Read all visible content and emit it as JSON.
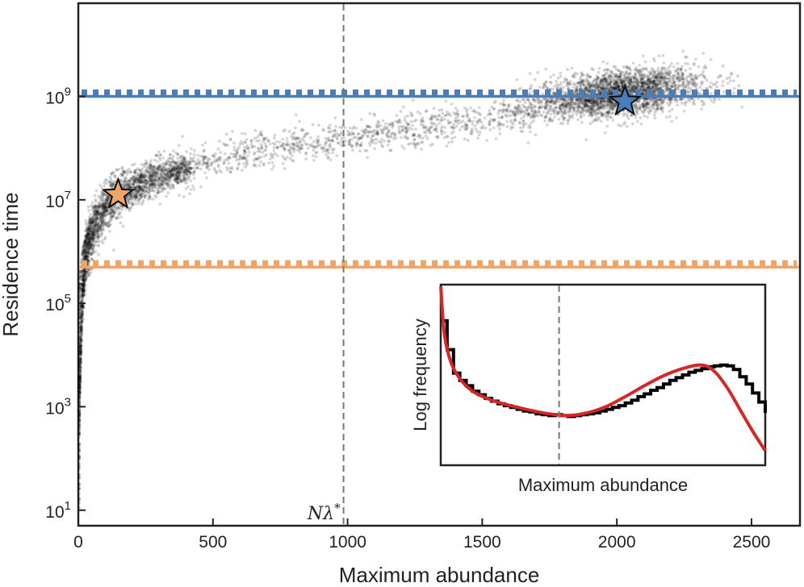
{
  "chart_data": [
    {
      "type": "scatter",
      "title": "",
      "xlabel": "Maximum abundance",
      "ylabel": "Residence time",
      "xlim": [
        0,
        2680
      ],
      "ylim_log10": [
        0.7,
        10.8
      ],
      "y_scale": "log",
      "grid": false,
      "x_ticks": [
        "0",
        "500",
        "1000",
        "1500",
        "2000",
        "2500"
      ],
      "x_tick_values": [
        0,
        500,
        1000,
        1500,
        2000,
        2500
      ],
      "y_ticks_exp": [
        "9",
        "7",
        "5",
        "3",
        "1"
      ],
      "y_ticks_base": "10",
      "y_tick_values_log10": [
        9,
        7,
        5,
        3,
        1
      ],
      "scatter_color": "#000000",
      "lower_cluster_trend": [
        [
          0,
          0.9
        ],
        [
          5,
          3.5
        ],
        [
          15,
          5.2
        ],
        [
          30,
          6.0
        ],
        [
          60,
          6.5
        ],
        [
          100,
          6.85
        ],
        [
          150,
          7.1
        ],
        [
          250,
          7.35
        ],
        [
          400,
          7.6
        ],
        [
          600,
          7.9
        ],
        [
          800,
          8.05
        ],
        [
          1000,
          8.2
        ],
        [
          1200,
          8.35
        ],
        [
          1400,
          8.5
        ],
        [
          1600,
          8.65
        ]
      ],
      "upper_cluster": {
        "center_x": 2000,
        "center_log10_y": 9.05,
        "x_range": [
          1500,
          2480
        ]
      },
      "reference_lines": [
        {
          "log10_y": 9.0,
          "color": "#4a7ebb"
        },
        {
          "log10_y": 5.7,
          "color": "#f0a466"
        }
      ],
      "markers": [
        {
          "x": 148,
          "log10_y": 7.1,
          "shape": "star",
          "color": "#f0a466"
        },
        {
          "x": 2030,
          "log10_y": 8.9,
          "shape": "star",
          "color": "#4a7ebb"
        }
      ],
      "vertical_line": {
        "x": 985,
        "label": "Nλ*",
        "color": "#777777"
      }
    },
    {
      "type": "line",
      "title": "",
      "xlabel": "Maximum abundance",
      "ylabel": "Log frequency",
      "x_ticks": [],
      "y_ticks": [],
      "x_range": [
        0,
        2550
      ],
      "y_range": [
        0,
        10
      ],
      "fit_line": {
        "color": "#d62728",
        "x": [
          0,
          30,
          80,
          150,
          250,
          400,
          550,
          700,
          850,
          1000,
          1150,
          1300,
          1450,
          1600,
          1750,
          1900,
          2050,
          2150,
          2250,
          2350,
          2450,
          2550
        ],
        "y": [
          9.9,
          7.2,
          5.7,
          4.8,
          4.1,
          3.6,
          3.3,
          3.05,
          2.85,
          2.75,
          2.9,
          3.25,
          3.8,
          4.4,
          4.95,
          5.35,
          5.55,
          5.2,
          4.3,
          3.1,
          1.9,
          0.8
        ]
      },
      "histogram": {
        "color": "#000000",
        "bin_width": 50,
        "values": [
          8.0,
          6.4,
          5.1,
          4.7,
          4.4,
          4.1,
          3.9,
          3.7,
          3.55,
          3.4,
          3.3,
          3.2,
          3.1,
          3.0,
          2.95,
          2.85,
          2.8,
          2.75,
          2.8,
          2.75,
          2.7,
          2.75,
          2.8,
          2.85,
          2.9,
          3.0,
          3.1,
          3.2,
          3.3,
          3.45,
          3.6,
          3.8,
          3.95,
          4.15,
          4.3,
          4.5,
          4.7,
          4.85,
          5.0,
          5.15,
          5.25,
          5.35,
          5.45,
          5.5,
          5.55,
          5.5,
          5.3,
          4.9,
          4.5,
          4.0,
          3.5,
          2.9
        ]
      },
      "vertical_line": {
        "x": 930,
        "color": "#777777"
      }
    }
  ]
}
